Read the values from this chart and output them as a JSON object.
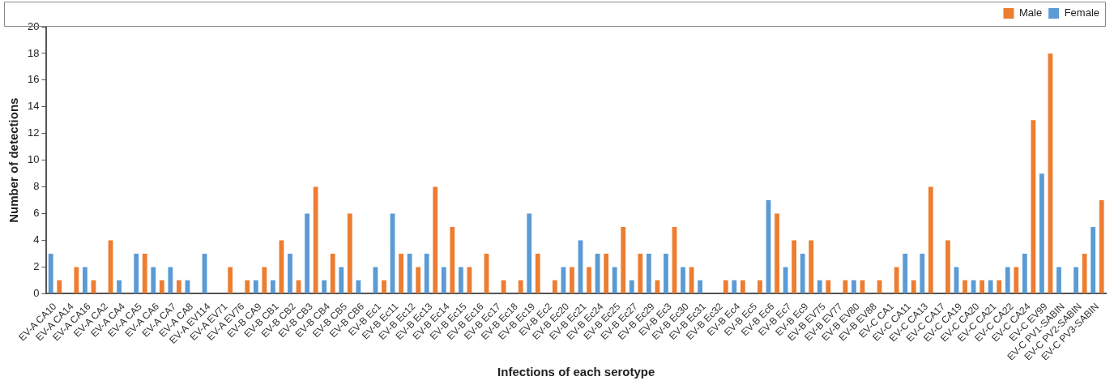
{
  "chart_data": {
    "type": "bar",
    "xlabel": "Infections of each serotype",
    "ylabel": "Number of detections",
    "categories": [
      "EV-A CA10",
      "EV-A CA14",
      "EV-A CA16",
      "EV-A CA2",
      "EV-A CA4",
      "EV-A CA5",
      "EV-A CA6",
      "EV-A CA7",
      "EV-A CA8",
      "EV-A EV114",
      "EV-A EV71",
      "EV-A EV76",
      "EV-B CA9",
      "EV-B CB1",
      "EV-B CB2",
      "EV-B CB3",
      "EV-B CB4",
      "EV-B CB5",
      "EV-B CB6",
      "EV-B Ec1",
      "EV-B Ec11",
      "EV-B Ec12",
      "EV-B Ec13",
      "EV-B Ec14",
      "EV-B Ec15",
      "EV-B Ec16",
      "EV-B Ec17",
      "EV-B Ec18",
      "EV-B Ec19",
      "EV-B Ec2",
      "EV-B Ec20",
      "EV-B Ec21",
      "EV-B Ec24",
      "EV-B Ec25",
      "EV-B Ec27",
      "EV-B Ec29",
      "EV-B Ec3",
      "EV-B Ec30",
      "EV-B Ec31",
      "EV-B Ec32",
      "EV-B Ec4",
      "EV-B Ec5",
      "EV-B Ec6",
      "EV-B Ec7",
      "EV-B Ec9",
      "EV-B EV75",
      "EV-B EV77",
      "EV-B EV80",
      "EV-B EV88",
      "EV-C CA1",
      "EV-C CA11",
      "EV-C CA13",
      "EV-C CA17",
      "EV-C CA19",
      "EV-C CA20",
      "EV-C CA21",
      "EV-C CA22",
      "EV-C CA24",
      "EV-C EV99",
      "EV-C PV1-SABIN",
      "EV-C PV2-SABIN",
      "EV-C PV3-SABIN"
    ],
    "series": [
      {
        "name": "Female",
        "color": "#5b9bd5",
        "values": [
          3,
          0,
          2,
          0,
          1,
          3,
          2,
          2,
          1,
          3,
          0,
          0,
          1,
          1,
          3,
          6,
          1,
          2,
          1,
          2,
          6,
          3,
          3,
          2,
          2,
          0,
          0,
          0,
          6,
          0,
          2,
          4,
          3,
          2,
          1,
          3,
          3,
          2,
          1,
          0,
          1,
          0,
          7,
          2,
          3,
          1,
          0,
          1,
          0,
          0,
          3,
          3,
          0,
          2,
          1,
          1,
          2,
          3,
          9,
          2,
          2,
          5
        ]
      },
      {
        "name": "Male",
        "color": "#ed7d31",
        "values": [
          1,
          2,
          1,
          4,
          0,
          3,
          1,
          1,
          0,
          0,
          2,
          1,
          2,
          4,
          1,
          8,
          3,
          6,
          0,
          1,
          3,
          2,
          8,
          5,
          2,
          3,
          1,
          1,
          3,
          1,
          2,
          2,
          3,
          5,
          3,
          1,
          5,
          2,
          0,
          1,
          1,
          1,
          6,
          4,
          4,
          1,
          1,
          1,
          1,
          2,
          1,
          8,
          4,
          1,
          1,
          1,
          2,
          13,
          18,
          0,
          3,
          7
        ]
      }
    ],
    "ylim": [
      0,
      20
    ],
    "yticks": [
      0,
      2,
      4,
      6,
      8,
      10,
      12,
      14,
      16,
      18,
      20
    ],
    "grid": false,
    "legend": "top right"
  }
}
